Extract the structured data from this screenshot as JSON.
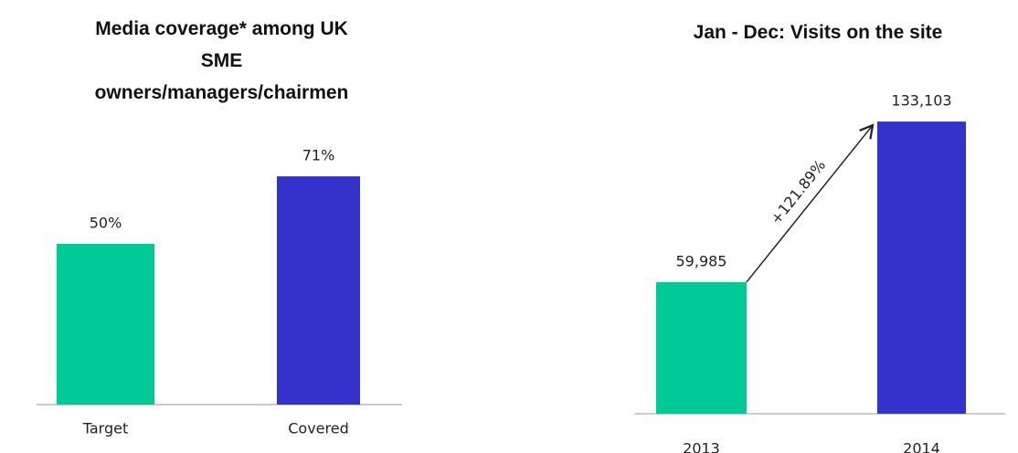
{
  "chart_data": [
    {
      "type": "bar",
      "title": "Media coverage* among UK SME owners/managers/chairmen",
      "categories": [
        "Target",
        "Covered"
      ],
      "values": [
        50,
        71
      ],
      "value_labels": [
        "50%",
        "71%"
      ],
      "colors": [
        "#00c896",
        "#3333cc"
      ],
      "ylim": [
        0,
        100
      ]
    },
    {
      "type": "bar",
      "title": "Jan - Dec: Visits on the site",
      "categories": [
        "2013",
        "2014"
      ],
      "values": [
        59985,
        133103
      ],
      "value_labels": [
        "59,985",
        "133,103"
      ],
      "colors": [
        "#00c896",
        "#3333cc"
      ],
      "ylim": [
        0,
        140000
      ],
      "annotation": "+121.89%"
    }
  ]
}
